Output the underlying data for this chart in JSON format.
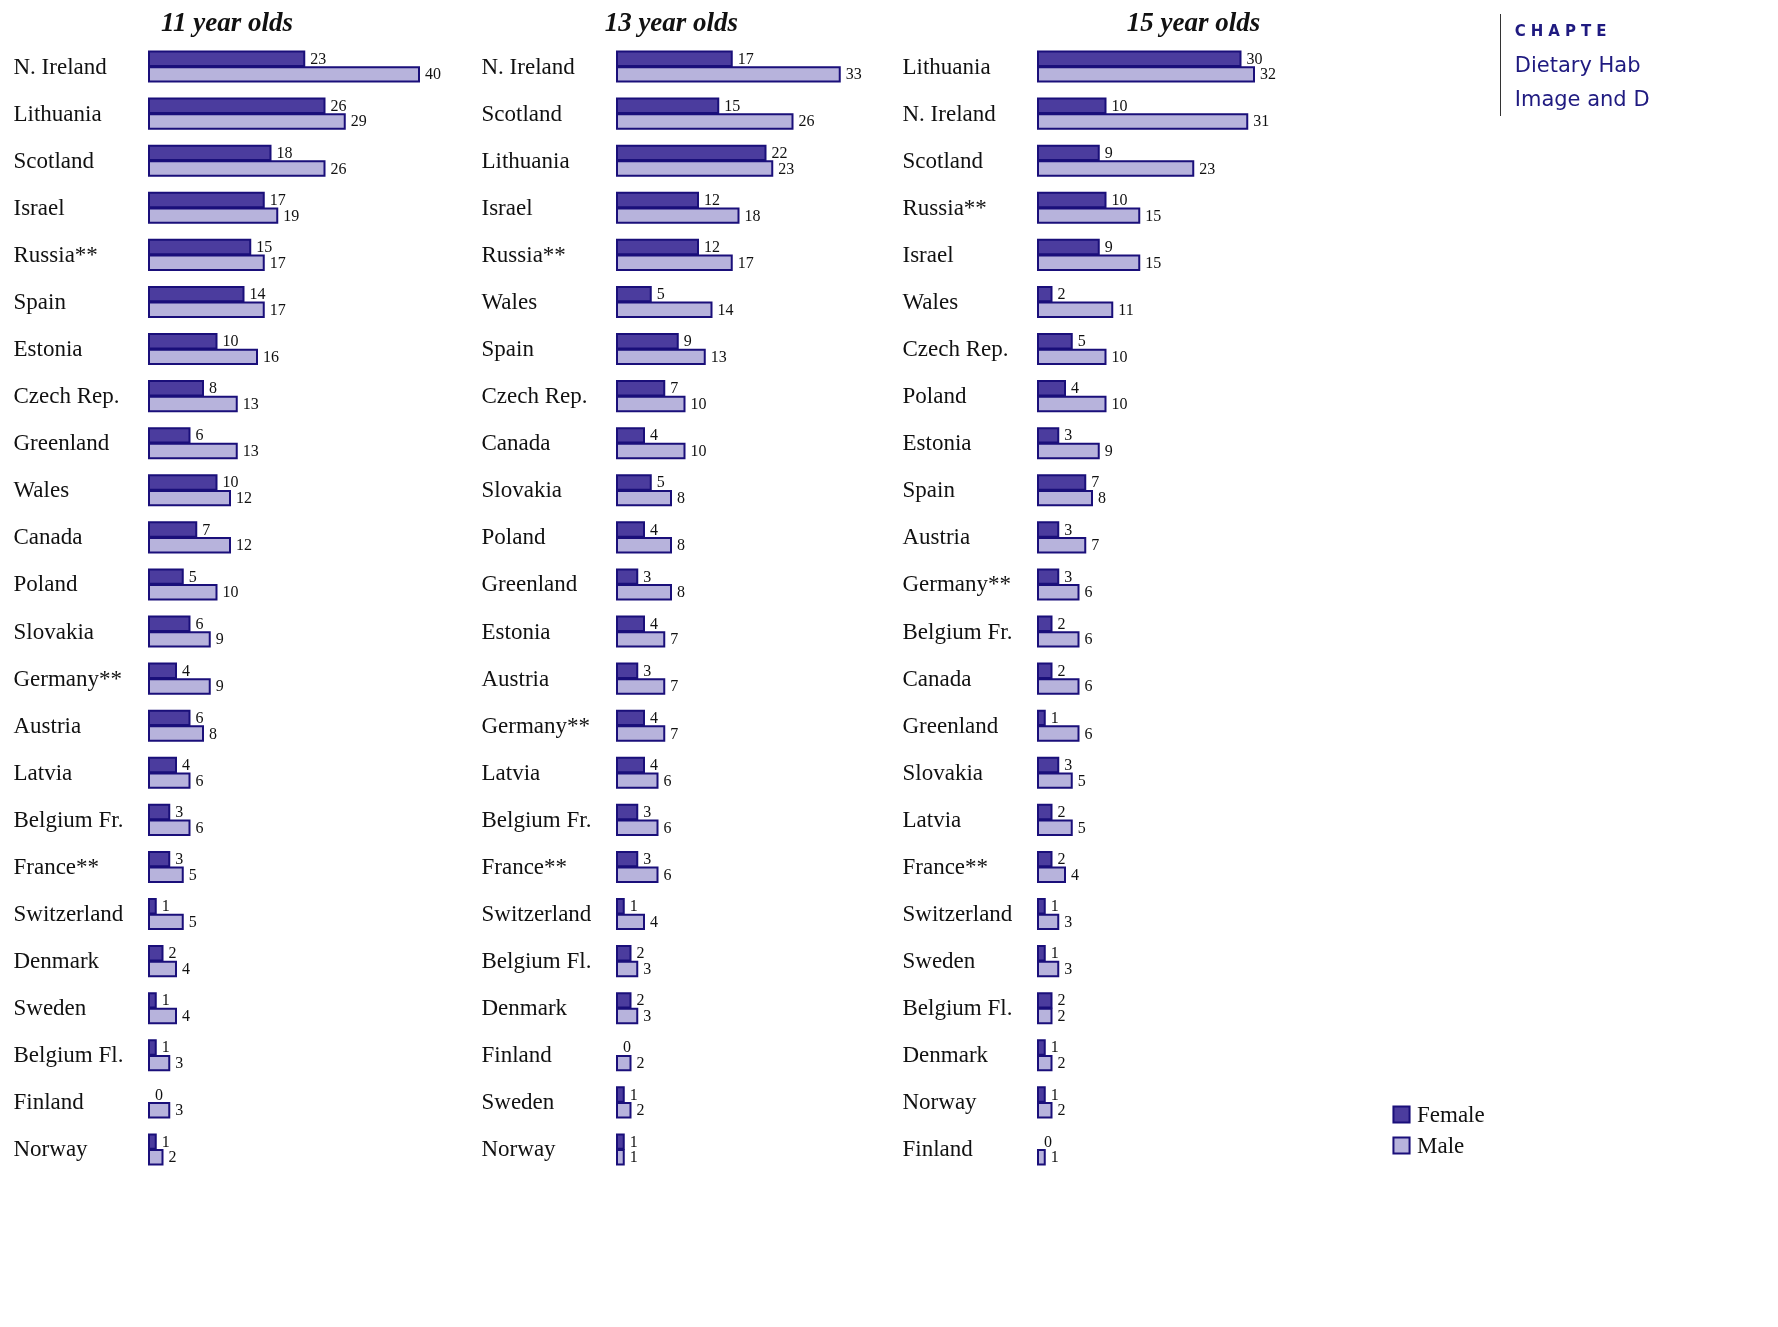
{
  "chart_data": [
    {
      "type": "bar",
      "orientation": "horizontal",
      "title": "11 year olds",
      "categories": [
        "N. Ireland",
        "Lithuania",
        "Scotland",
        "Israel",
        "Russia**",
        "Spain",
        "Estonia",
        "Czech Rep.",
        "Greenland",
        "Wales",
        "Canada",
        "Poland",
        "Slovakia",
        "Germany**",
        "Austria",
        "Latvia",
        "Belgium Fr.",
        "France**",
        "Switzerland",
        "Denmark",
        "Sweden",
        "Belgium Fl.",
        "Finland",
        "Norway"
      ],
      "series": [
        {
          "color": "#4b3c9e",
          "values": [
            23,
            26,
            18,
            17,
            15,
            14,
            10,
            8,
            6,
            10,
            7,
            5,
            6,
            4,
            6,
            4,
            3,
            3,
            1,
            2,
            1,
            1,
            0,
            1
          ]
        },
        {
          "color": "#b7b3dc",
          "values": [
            40,
            29,
            26,
            19,
            17,
            17,
            16,
            13,
            13,
            12,
            12,
            10,
            9,
            9,
            8,
            6,
            6,
            5,
            5,
            4,
            4,
            3,
            3,
            2
          ]
        }
      ],
      "tick_labels": "y",
      "data_labels": true
    },
    {
      "type": "bar",
      "orientation": "horizontal",
      "title": "13 year olds",
      "categories": [
        "N. Ireland",
        "Scotland",
        "Lithuania",
        "Israel",
        "Russia**",
        "Wales",
        "Spain",
        "Czech Rep.",
        "Canada",
        "Slovakia",
        "Poland",
        "Greenland",
        "Estonia",
        "Austria",
        "Germany**",
        "Latvia",
        "Belgium Fr.",
        "France**",
        "Switzerland",
        "Belgium Fl.",
        "Denmark",
        "Finland",
        "Sweden",
        "Norway"
      ],
      "series": [
        {
          "color": "#4b3c9e",
          "values": [
            17,
            15,
            22,
            12,
            12,
            5,
            9,
            7,
            4,
            5,
            4,
            3,
            4,
            3,
            4,
            4,
            3,
            3,
            1,
            2,
            2,
            0,
            1,
            1
          ]
        },
        {
          "color": "#b7b3dc",
          "values": [
            33,
            26,
            23,
            18,
            17,
            14,
            13,
            10,
            10,
            8,
            8,
            8,
            7,
            7,
            7,
            6,
            6,
            6,
            4,
            3,
            3,
            2,
            2,
            1
          ]
        }
      ],
      "tick_labels": "y",
      "data_labels": true
    },
    {
      "type": "bar",
      "orientation": "horizontal",
      "title": "15 year olds",
      "categories": [
        "Lithuania",
        "N. Ireland",
        "Scotland",
        "Russia**",
        "Israel",
        "Wales",
        "Czech Rep.",
        "Poland",
        "Estonia",
        "Spain",
        "Austria",
        "Germany**",
        "Belgium Fr.",
        "Canada",
        "Greenland",
        "Slovakia",
        "Latvia",
        "France**",
        "Switzerland",
        "Sweden",
        "Belgium Fl.",
        "Denmark",
        "Norway",
        "Finland"
      ],
      "series": [
        {
          "name": "Female",
          "color": "#4b3c9e",
          "values": [
            30,
            10,
            9,
            10,
            9,
            2,
            5,
            4,
            3,
            7,
            3,
            3,
            2,
            2,
            1,
            3,
            2,
            2,
            1,
            1,
            2,
            1,
            1,
            0
          ]
        },
        {
          "name": "Male",
          "color": "#b7b3dc",
          "values": [
            32,
            31,
            23,
            15,
            15,
            11,
            10,
            10,
            9,
            8,
            7,
            6,
            6,
            6,
            6,
            5,
            5,
            4,
            3,
            3,
            2,
            2,
            2,
            1
          ]
        }
      ],
      "tick_labels": "y",
      "data_labels": true,
      "legend": "bottom right",
      "annotations": [
        "CHAPTE",
        "Dietary Hab",
        "Image and D"
      ]
    }
  ]
}
